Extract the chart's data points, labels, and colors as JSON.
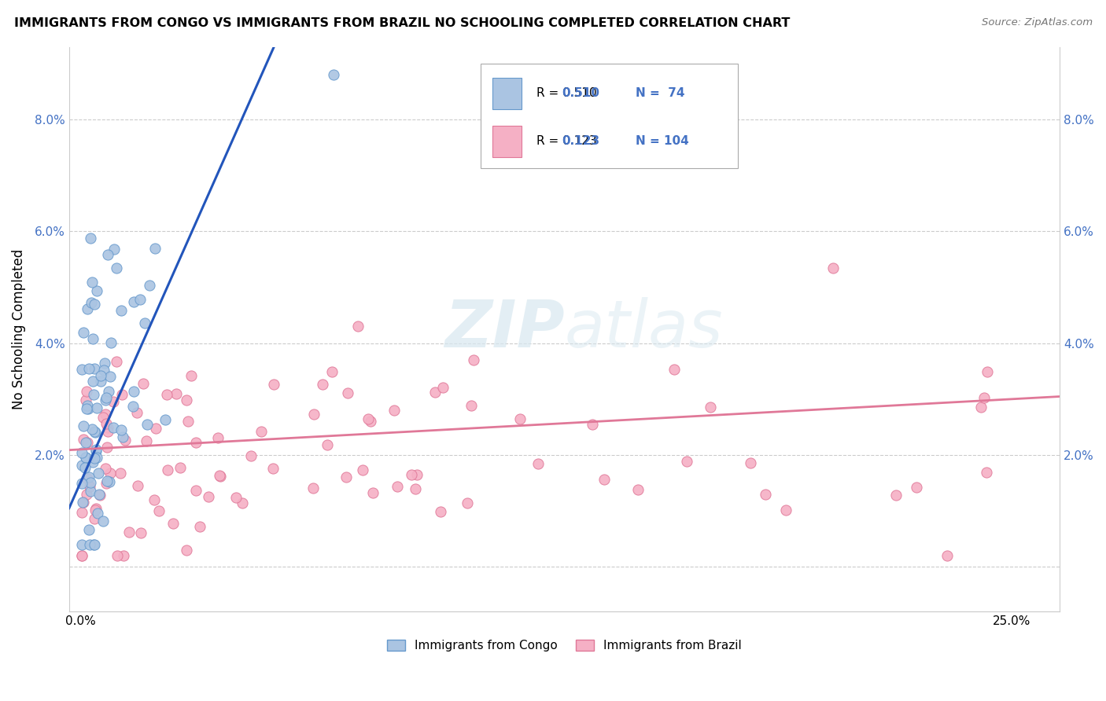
{
  "title": "IMMIGRANTS FROM CONGO VS IMMIGRANTS FROM BRAZIL NO SCHOOLING COMPLETED CORRELATION CHART",
  "source": "Source: ZipAtlas.com",
  "ylabel": "No Schooling Completed",
  "x_ticks": [
    0.0,
    0.05,
    0.1,
    0.15,
    0.2,
    0.25
  ],
  "x_tick_labels": [
    "0.0%",
    "",
    "",
    "",
    "",
    "25.0%"
  ],
  "y_ticks": [
    0.0,
    0.02,
    0.04,
    0.06,
    0.08
  ],
  "y_tick_labels_left": [
    "",
    "2.0%",
    "4.0%",
    "6.0%",
    "8.0%"
  ],
  "y_tick_labels_right": [
    "",
    "2.0%",
    "4.0%",
    "6.0%",
    "8.0%"
  ],
  "xlim": [
    -0.003,
    0.263
  ],
  "ylim": [
    -0.008,
    0.093
  ],
  "congo_color": "#aac4e2",
  "congo_edge_color": "#6699cc",
  "brazil_color": "#f5b0c5",
  "brazil_edge_color": "#e07898",
  "congo_trend_color": "#2255bb",
  "brazil_trend_color": "#e07898",
  "congo_R": 0.51,
  "congo_N": 74,
  "brazil_R": 0.123,
  "brazil_N": 104,
  "watermark_zip": "ZIP",
  "watermark_atlas": "atlas",
  "legend_label_1": "Immigrants from Congo",
  "legend_label_2": "Immigrants from Brazil",
  "tick_color": "#4472c4",
  "legend_R_color": "#4472c4",
  "legend_N_color": "#4472c4"
}
